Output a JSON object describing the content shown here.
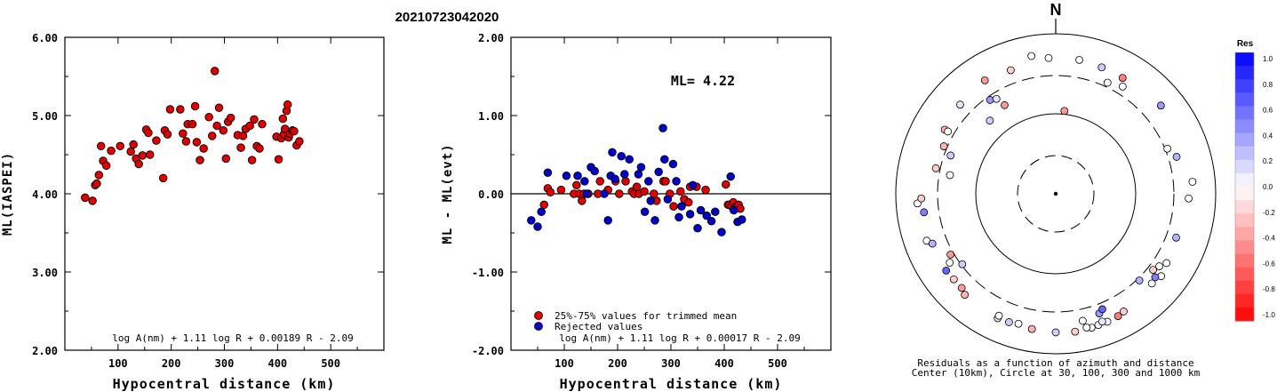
{
  "event_id": "20210723042020",
  "north_label": "N",
  "chart_data": [
    {
      "type": "scatter",
      "xlabel": "Hypocentral distance (km)",
      "ylabel": "ML(IASPEI)",
      "xlim": [
        0,
        600
      ],
      "ylim": [
        2.0,
        6.0
      ],
      "x_ticks": [
        "100",
        "200",
        "300",
        "400",
        "500"
      ],
      "y_ticks": [
        "2.00",
        "3.00",
        "4.00",
        "5.00",
        "6.00"
      ],
      "formula": "log A(nm) + 1.11 log R + 0.00189 R - 2.09",
      "color": "#e00000",
      "points": [
        [
          38,
          3.95
        ],
        [
          52,
          3.91
        ],
        [
          57,
          4.11
        ],
        [
          60,
          4.13
        ],
        [
          64,
          4.24
        ],
        [
          68,
          4.61
        ],
        [
          72,
          4.42
        ],
        [
          78,
          4.36
        ],
        [
          87,
          4.55
        ],
        [
          104,
          4.61
        ],
        [
          124,
          4.54
        ],
        [
          129,
          4.63
        ],
        [
          134,
          4.45
        ],
        [
          139,
          4.38
        ],
        [
          146,
          4.49
        ],
        [
          153,
          4.82
        ],
        [
          157,
          4.78
        ],
        [
          160,
          4.5
        ],
        [
          172,
          4.68
        ],
        [
          185,
          4.2
        ],
        [
          188,
          4.81
        ],
        [
          193,
          4.76
        ],
        [
          198,
          5.08
        ],
        [
          217,
          5.08
        ],
        [
          222,
          4.77
        ],
        [
          228,
          4.67
        ],
        [
          231,
          4.89
        ],
        [
          240,
          4.89
        ],
        [
          245,
          5.12
        ],
        [
          248,
          4.66
        ],
        [
          254,
          4.43
        ],
        [
          261,
          4.58
        ],
        [
          271,
          4.98
        ],
        [
          277,
          4.74
        ],
        [
          282,
          5.57
        ],
        [
          286,
          4.87
        ],
        [
          290,
          5.1
        ],
        [
          298,
          4.81
        ],
        [
          303,
          4.45
        ],
        [
          307,
          4.92
        ],
        [
          312,
          4.97
        ],
        [
          325,
          4.75
        ],
        [
          331,
          4.59
        ],
        [
          335,
          4.74
        ],
        [
          340,
          4.83
        ],
        [
          348,
          4.87
        ],
        [
          352,
          4.43
        ],
        [
          356,
          4.95
        ],
        [
          361,
          4.61
        ],
        [
          366,
          4.58
        ],
        [
          371,
          4.89
        ],
        [
          398,
          4.73
        ],
        [
          402,
          4.44
        ],
        [
          407,
          4.71
        ],
        [
          410,
          4.96
        ],
        [
          412,
          4.76
        ],
        [
          414,
          4.83
        ],
        [
          417,
          5.06
        ],
        [
          419,
          5.14
        ],
        [
          421,
          4.72
        ],
        [
          423,
          4.77
        ],
        [
          428,
          4.81
        ],
        [
          431,
          4.8
        ],
        [
          436,
          4.62
        ],
        [
          441,
          4.67
        ]
      ]
    },
    {
      "type": "scatter",
      "xlabel": "Hypocentral distance (km)",
      "ylabel": "ML - ML(evt)",
      "xlim": [
        0,
        600
      ],
      "ylim": [
        -2.0,
        2.0
      ],
      "x_ticks": [
        "100",
        "200",
        "300",
        "400",
        "500"
      ],
      "y_ticks": [
        "-2.00",
        "-1.00",
        "0.00",
        "1.00",
        "2.00"
      ],
      "annotation": "ML= 4.22",
      "formula": "log A(nm) + 1.11 log R + 0.00017 R - 2.09",
      "legend": [
        {
          "label": "25%-75% values for trimmed mean",
          "color": "#e00000"
        },
        {
          "label": "Rejected values",
          "color": "#0000cc"
        }
      ],
      "series": [
        {
          "name": "25%-75% values for trimmed mean",
          "color": "#e00000",
          "points": [
            [
              62,
              -0.14
            ],
            [
              69,
              0.07
            ],
            [
              74,
              0.02
            ],
            [
              94,
              0.05
            ],
            [
              118,
              0.0
            ],
            [
              123,
              0.11
            ],
            [
              128,
              0.0
            ],
            [
              133,
              -0.09
            ],
            [
              137,
              0.0
            ],
            [
              145,
              0.0
            ],
            [
              163,
              0.0
            ],
            [
              167,
              0.16
            ],
            [
              182,
              0.05
            ],
            [
              196,
              0.16
            ],
            [
              203,
              0.0
            ],
            [
              215,
              0.16
            ],
            [
              227,
              0.03
            ],
            [
              231,
              0.0
            ],
            [
              236,
              0.09
            ],
            [
              240,
              0.0
            ],
            [
              250,
              0.03
            ],
            [
              268,
              0.0
            ],
            [
              273,
              -0.09
            ],
            [
              286,
              0.16
            ],
            [
              290,
              0.16
            ],
            [
              298,
              0.0
            ],
            [
              305,
              -0.16
            ],
            [
              318,
              0.03
            ],
            [
              325,
              -0.07
            ],
            [
              333,
              -0.11
            ],
            [
              336,
              0.09
            ],
            [
              348,
              0.09
            ],
            [
              365,
              0.05
            ],
            [
              403,
              0.12
            ],
            [
              407,
              -0.14
            ],
            [
              410,
              -0.14
            ],
            [
              414,
              -0.16
            ],
            [
              417,
              -0.11
            ],
            [
              419,
              -0.18
            ],
            [
              423,
              -0.16
            ],
            [
              427,
              -0.14
            ],
            [
              430,
              -0.19
            ]
          ]
        },
        {
          "name": "Rejected values",
          "color": "#0000cc",
          "points": [
            [
              38,
              -0.34
            ],
            [
              50,
              -0.42
            ],
            [
              57,
              -0.23
            ],
            [
              69,
              0.27
            ],
            [
              104,
              0.23
            ],
            [
              125,
              0.23
            ],
            [
              138,
              0.16
            ],
            [
              142,
              0.0
            ],
            [
              150,
              0.34
            ],
            [
              157,
              0.29
            ],
            [
              175,
              0.0
            ],
            [
              182,
              -0.34
            ],
            [
              187,
              0.23
            ],
            [
              190,
              0.53
            ],
            [
              195,
              0.19
            ],
            [
              207,
              0.48
            ],
            [
              213,
              0.25
            ],
            [
              222,
              0.44
            ],
            [
              239,
              0.25
            ],
            [
              244,
              0.34
            ],
            [
              251,
              -0.23
            ],
            [
              258,
              0.16
            ],
            [
              262,
              -0.09
            ],
            [
              270,
              -0.34
            ],
            [
              277,
              0.28
            ],
            [
              285,
              0.84
            ],
            [
              288,
              0.44
            ],
            [
              294,
              -0.07
            ],
            [
              304,
              0.38
            ],
            [
              310,
              0.16
            ],
            [
              315,
              -0.3
            ],
            [
              320,
              -0.16
            ],
            [
              336,
              -0.26
            ],
            [
              341,
              0.11
            ],
            [
              350,
              -0.44
            ],
            [
              356,
              -0.21
            ],
            [
              367,
              -0.28
            ],
            [
              376,
              -0.35
            ],
            [
              383,
              -0.23
            ],
            [
              395,
              -0.49
            ],
            [
              412,
              0.22
            ],
            [
              418,
              -0.21
            ],
            [
              425,
              -0.36
            ],
            [
              433,
              -0.33
            ]
          ]
        }
      ]
    },
    {
      "type": "scatter",
      "title": "Residuals as a function of azimuth and distance",
      "subtitle": "Center (10km), Circle at 30, 100, 300 and 1000 km",
      "colorbar": {
        "label": "Res",
        "ticks": [
          "1.0",
          "0.8",
          "0.6",
          "0.4",
          "0.2",
          "0.0",
          "-0.2",
          "-0.4",
          "-0.6",
          "-0.8",
          "-1.0"
        ],
        "max_color": "#0000ff",
        "zero_color": "#ffffff",
        "min_color": "#ff0000"
      },
      "points": [
        {
          "az": 350,
          "dist": 560,
          "res": 0.0
        },
        {
          "az": 357,
          "dist": 500,
          "res": 0.0
        },
        {
          "az": 10,
          "dist": 500,
          "res": 0.0
        },
        {
          "az": 20,
          "dist": 480,
          "res": 0.2
        },
        {
          "az": 30,
          "dist": 470,
          "res": -0.5
        },
        {
          "az": 328,
          "dist": 470,
          "res": -0.4
        },
        {
          "az": 313,
          "dist": 430,
          "res": 0.1
        },
        {
          "az": 340,
          "dist": 440,
          "res": -0.2
        },
        {
          "az": 32,
          "dist": 380,
          "res": 0.0
        },
        {
          "az": 25,
          "dist": 340,
          "res": 0.0
        },
        {
          "az": 50,
          "dist": 520,
          "res": 0.4
        },
        {
          "az": 300,
          "dist": 400,
          "res": -0.3
        },
        {
          "az": 300,
          "dist": 360,
          "res": 0.0
        },
        {
          "az": 282,
          "dist": 340,
          "res": -0.2
        },
        {
          "az": 293,
          "dist": 330,
          "res": -0.3
        },
        {
          "az": 325,
          "dist": 270,
          "res": 0.4
        },
        {
          "az": 328,
          "dist": 250,
          "res": 0.1
        },
        {
          "az": 6,
          "dist": 110,
          "res": -0.4
        },
        {
          "az": 330,
          "dist": 190,
          "res": -0.4
        },
        {
          "az": 318,
          "dist": 170,
          "res": 0.2
        },
        {
          "az": 290,
          "dist": 250,
          "res": 0.2
        },
        {
          "az": 280,
          "dist": 220,
          "res": 0.0
        },
        {
          "az": 73,
          "dist": 380,
          "res": 0.3
        },
        {
          "az": 68,
          "dist": 320,
          "res": 0.0
        },
        {
          "az": 85,
          "dist": 520,
          "res": 0.0
        },
        {
          "az": 92,
          "dist": 460,
          "res": 0.0
        },
        {
          "az": 266,
          "dist": 540,
          "res": 0.0
        },
        {
          "az": 268,
          "dist": 480,
          "res": -0.2
        },
        {
          "az": 262,
          "dist": 460,
          "res": 0.5
        },
        {
          "az": 250,
          "dist": 520,
          "res": 0.0
        },
        {
          "az": 248,
          "dist": 460,
          "res": 0.3
        },
        {
          "az": 235,
          "dist": 470,
          "res": 0.6
        },
        {
          "az": 230,
          "dist": 460,
          "res": -0.2
        },
        {
          "az": 237,
          "dist": 380,
          "res": 0.0
        },
        {
          "az": 240,
          "dist": 330,
          "res": -0.4
        },
        {
          "az": 233,
          "dist": 290,
          "res": 0.2
        },
        {
          "az": 222,
          "dist": 500,
          "res": -0.3
        },
        {
          "az": 225,
          "dist": 460,
          "res": -0.4
        },
        {
          "az": 205,
          "dist": 520,
          "res": 0.1
        },
        {
          "az": 205,
          "dist": 480,
          "res": 0.0
        },
        {
          "az": 200,
          "dist": 510,
          "res": 0.2
        },
        {
          "az": 196,
          "dist": 490,
          "res": 0.0
        },
        {
          "az": 190,
          "dist": 520,
          "res": -0.3
        },
        {
          "az": 180,
          "dist": 540,
          "res": 0.2
        },
        {
          "az": 172,
          "dist": 550,
          "res": -0.2
        },
        {
          "az": 165,
          "dist": 540,
          "res": 0.0
        },
        {
          "az": 167,
          "dist": 520,
          "res": 0.0
        },
        {
          "az": 162,
          "dist": 530,
          "res": 0.0
        },
        {
          "az": 158,
          "dist": 530,
          "res": 0.0
        },
        {
          "az": 160,
          "dist": 500,
          "res": 0.1
        },
        {
          "az": 153,
          "dist": 520,
          "res": -0.5
        },
        {
          "az": 150,
          "dist": 500,
          "res": -0.2
        },
        {
          "az": 168,
          "dist": 420,
          "res": 0.0
        },
        {
          "az": 160,
          "dist": 390,
          "res": 0.4
        },
        {
          "az": 158,
          "dist": 360,
          "res": 0.6
        },
        {
          "az": 133,
          "dist": 440,
          "res": 0.0
        },
        {
          "az": 128,
          "dist": 470,
          "res": 0.0
        },
        {
          "az": 130,
          "dist": 420,
          "res": 0.5
        },
        {
          "az": 122,
          "dist": 430,
          "res": 0.0
        },
        {
          "az": 125,
          "dist": 380,
          "res": 0.0
        },
        {
          "az": 136,
          "dist": 320,
          "res": 0.3
        },
        {
          "az": 128,
          "dist": 350,
          "res": -0.2
        },
        {
          "az": 110,
          "dist": 400,
          "res": 0.3
        }
      ]
    }
  ]
}
